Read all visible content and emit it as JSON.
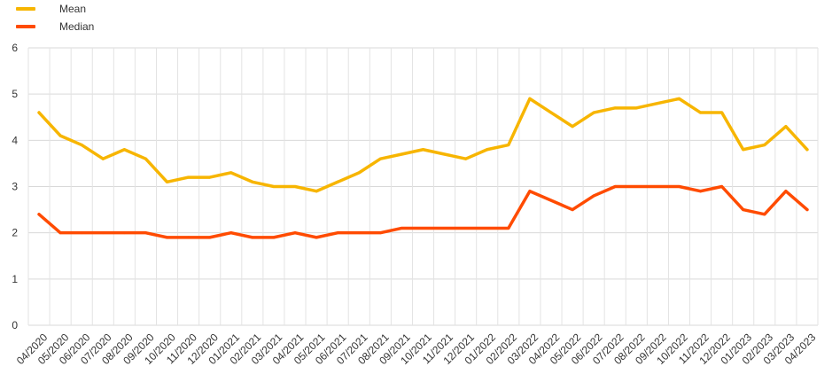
{
  "chart_data": {
    "type": "line",
    "title": "",
    "xlabel": "",
    "ylabel": "",
    "ylim": [
      0,
      6
    ],
    "yticks": [
      0,
      1,
      2,
      3,
      4,
      5,
      6
    ],
    "grid": true,
    "legend_position": "top-left",
    "categories": [
      "04/2020",
      "05/2020",
      "06/2020",
      "07/2020",
      "08/2020",
      "09/2020",
      "10/2020",
      "11/2020",
      "12/2020",
      "01/2021",
      "02/2021",
      "03/2021",
      "04/2021",
      "05/2021",
      "06/2021",
      "07/2021",
      "08/2021",
      "09/2021",
      "10/2021",
      "11/2021",
      "12/2021",
      "01/2022",
      "02/2022",
      "03/2022",
      "04/2022",
      "05/2022",
      "06/2022",
      "07/2022",
      "08/2022",
      "09/2022",
      "10/2022",
      "11/2022",
      "12/2022",
      "01/2023",
      "02/2023",
      "03/2023",
      "04/2023"
    ],
    "series": [
      {
        "name": "Mean",
        "color": "#F7B500",
        "values": [
          4.6,
          4.1,
          3.9,
          3.6,
          3.8,
          3.6,
          3.1,
          3.2,
          3.2,
          3.3,
          3.1,
          3.0,
          3.0,
          2.9,
          3.1,
          3.3,
          3.6,
          3.7,
          3.8,
          3.7,
          3.6,
          3.8,
          3.9,
          4.9,
          4.6,
          4.3,
          4.6,
          4.7,
          4.7,
          4.8,
          4.9,
          4.6,
          4.6,
          3.8,
          3.9,
          4.3,
          3.8
        ]
      },
      {
        "name": "Median",
        "color": "#FF4B00",
        "values": [
          2.4,
          2.0,
          2.0,
          2.0,
          2.0,
          2.0,
          1.9,
          1.9,
          1.9,
          2.0,
          1.9,
          1.9,
          2.0,
          1.9,
          2.0,
          2.0,
          2.0,
          2.1,
          2.1,
          2.1,
          2.1,
          2.1,
          2.1,
          2.9,
          2.7,
          2.5,
          2.8,
          3.0,
          3.0,
          3.0,
          3.0,
          2.9,
          3.0,
          2.5,
          2.4,
          2.9,
          2.5
        ]
      }
    ]
  }
}
